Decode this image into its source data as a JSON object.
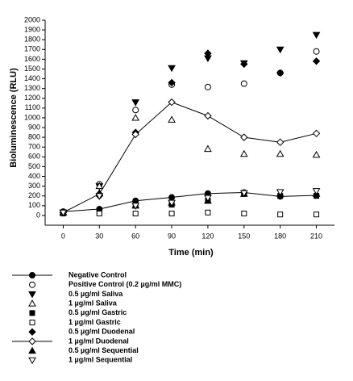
{
  "chart_data": {
    "type": "scatter",
    "x_label": "Time (min)",
    "y_label": "Bioluminescence (RLU)",
    "x": [
      0,
      30,
      60,
      90,
      120,
      150,
      180,
      210
    ],
    "xlim": [
      -15,
      225
    ],
    "xticks": [
      0,
      30,
      60,
      90,
      120,
      150,
      180,
      210
    ],
    "ylim": [
      -100,
      2000
    ],
    "yticks": [
      0,
      100,
      200,
      300,
      400,
      500,
      600,
      700,
      800,
      900,
      1000,
      1100,
      1200,
      1300,
      1400,
      1500,
      1600,
      1700,
      1800,
      1900,
      2000
    ],
    "series": [
      {
        "name": "Negative Control",
        "color": "#000000",
        "marker": "circle",
        "filled": true,
        "line": true,
        "values": [
          40,
          65,
          150,
          185,
          225,
          235,
          195,
          205
        ]
      },
      {
        "name": "Positive Control (0.2 µg/ml MMC)",
        "color": "#000000",
        "marker": "circle",
        "filled": false,
        "line": false,
        "values": [
          30,
          320,
          1080,
          1340,
          1315,
          1350,
          1460,
          1680
        ]
      },
      {
        "name": "0.5 µg/ml Saliva",
        "color": "#000000",
        "marker": "triangle-down",
        "filled": true,
        "line": false,
        "values": [
          30,
          300,
          1160,
          1510,
          1610,
          1560,
          1700,
          1850
        ]
      },
      {
        "name": "1 µg/ml Saliva",
        "color": "#000000",
        "marker": "triangle-up",
        "filled": false,
        "line": false,
        "values": [
          30,
          300,
          1000,
          980,
          680,
          630,
          630,
          620
        ]
      },
      {
        "name": "0.5 µg/ml Gastric",
        "color": "#000000",
        "marker": "square",
        "filled": true,
        "line": false,
        "values": [
          30,
          30,
          100,
          110,
          150,
          220,
          200,
          200
        ]
      },
      {
        "name": "1 µg/ml Gastric",
        "color": "#000000",
        "marker": "square",
        "filled": false,
        "line": false,
        "values": [
          20,
          20,
          20,
          20,
          30,
          20,
          10,
          10
        ]
      },
      {
        "name": "0.5 µg/ml Duodenal",
        "color": "#000000",
        "marker": "diamond",
        "filled": true,
        "line": false,
        "values": [
          30,
          200,
          850,
          1360,
          1660,
          1550,
          1460,
          1580
        ]
      },
      {
        "name": "1 µg/ml Duodenal",
        "color": "#000000",
        "marker": "diamond",
        "filled": false,
        "line": true,
        "values": [
          30,
          220,
          830,
          1160,
          1020,
          800,
          750,
          840
        ]
      },
      {
        "name": "0.5 µg/ml Sequential",
        "color": "#000000",
        "marker": "triangle-up",
        "filled": true,
        "line": false,
        "values": [
          30,
          230,
          100,
          130,
          150,
          220,
          220,
          220
        ]
      },
      {
        "name": "1 µg/ml Sequential",
        "color": "#000000",
        "marker": "triangle-down",
        "filled": false,
        "line": false,
        "values": [
          30,
          200,
          100,
          130,
          180,
          230,
          240,
          250
        ]
      }
    ]
  }
}
